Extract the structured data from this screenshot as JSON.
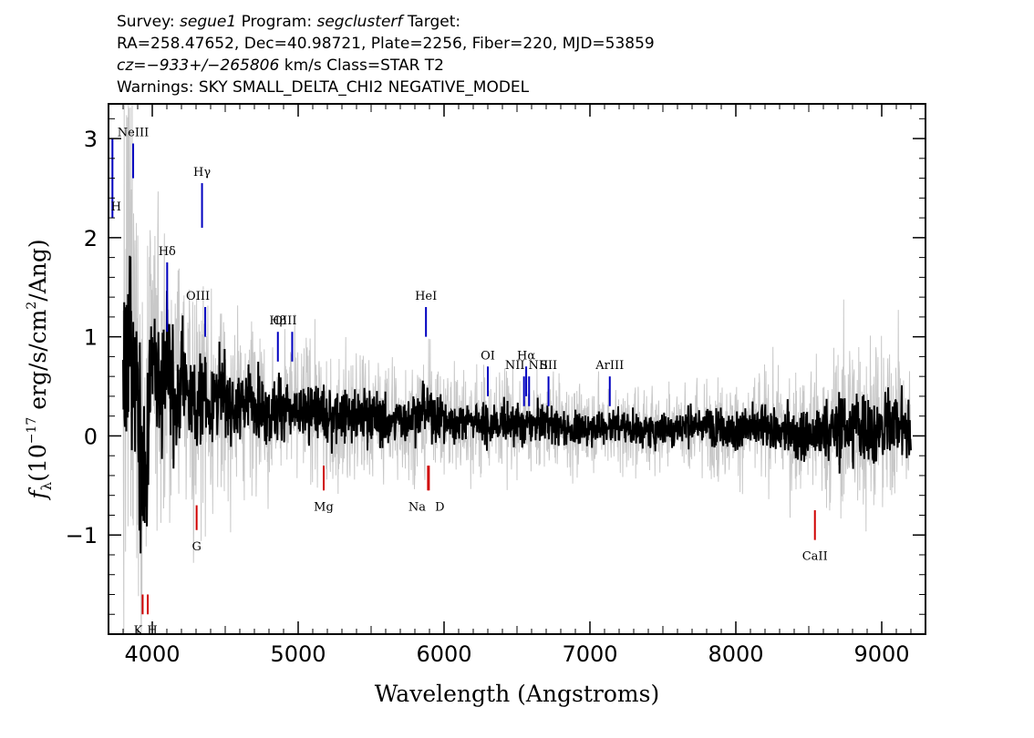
{
  "header": {
    "survey_label": "Survey:",
    "survey": "segue1",
    "program_label": "Program:",
    "program": "segclusterf",
    "target_label": "Target:",
    "line2": "RA=258.47652, Dec=40.98721, Plate=2256, Fiber=220, MJD=53859",
    "cz": "cz=−933+/−265806",
    "cz_unit_class": "km/s Class=STAR T2",
    "warnings": "Warnings: SKY SMALL_DELTA_CHI2 NEGATIVE_MODEL"
  },
  "chart_data": {
    "type": "line",
    "xlabel": "Wavelength (Angstroms)",
    "ylabel_prefix": "f",
    "ylabel_sub": "λ",
    "ylabel_units_a": "(10",
    "ylabel_exp1": "−17",
    "ylabel_units_b": " erg/s/cm",
    "ylabel_exp2": "2",
    "ylabel_units_c": "/Ang)",
    "xlim": [
      3700,
      9300
    ],
    "ylim": [
      -2.0,
      3.35
    ],
    "xticks": [
      4000,
      5000,
      6000,
      7000,
      8000,
      9000
    ],
    "xtick_labels": [
      "4000",
      "5000",
      "6000",
      "7000",
      "8000",
      "9000"
    ],
    "yticks": [
      -1,
      0,
      1,
      2,
      3
    ],
    "ytick_labels": [
      "−1",
      "0",
      "1",
      "2",
      "3"
    ],
    "series": [
      {
        "role": "flux",
        "color": "#000000",
        "x": [
          3800,
          3850,
          3900,
          3950,
          4000,
          4050,
          4100,
          4150,
          4200,
          4250,
          4300,
          4350,
          4400,
          4450,
          4500,
          4600,
          4700,
          4800,
          4900,
          5000,
          5100,
          5200,
          5300,
          5400,
          5500,
          5600,
          5700,
          5800,
          5900,
          6000,
          6100,
          6200,
          6300,
          6400,
          6500,
          6600,
          6700,
          6800,
          6900,
          7000,
          7200,
          7400,
          7600,
          7800,
          8000,
          8200,
          8400,
          8600,
          8800,
          9000,
          9100,
          9200
        ],
        "y": [
          0.3,
          1.3,
          0.5,
          -0.6,
          0.9,
          0.4,
          0.8,
          0.3,
          0.6,
          0.5,
          0.2,
          0.5,
          0.3,
          0.4,
          0.35,
          0.3,
          0.4,
          0.2,
          0.3,
          0.2,
          0.3,
          0.15,
          0.2,
          0.2,
          0.2,
          0.15,
          0.15,
          0.2,
          0.25,
          0.15,
          0.15,
          0.15,
          0.1,
          0.15,
          0.1,
          0.1,
          0.15,
          0.1,
          0.05,
          0.1,
          0.1,
          0.05,
          0.1,
          0.1,
          0.05,
          0.1,
          0.0,
          0.05,
          0.1,
          0.05,
          0.2,
          0.0
        ]
      },
      {
        "role": "error",
        "color": "#c8c8c8",
        "x": [
          3800,
          3900,
          4000,
          4200,
          4400,
          4600,
          5000,
          5500,
          6000,
          6500,
          7000,
          7500,
          8000,
          8500,
          8800,
          9000,
          9200
        ],
        "y": [
          2.0,
          1.6,
          1.1,
          0.9,
          0.75,
          0.6,
          0.5,
          0.45,
          0.4,
          0.35,
          0.3,
          0.3,
          0.35,
          0.45,
          0.7,
          0.6,
          0.55
        ]
      }
    ],
    "emission_lines": [
      {
        "label": "H",
        "x": 3727
      },
      {
        "label": "NeIII",
        "x": 3869
      },
      {
        "label": "Hγ",
        "x": 4341
      },
      {
        "label": "Hδ",
        "x": 4102
      },
      {
        "label": "OIII",
        "x": 4363
      },
      {
        "label": "Hβ",
        "x": 4861
      },
      {
        "label": "OIII",
        "x": 4959
      },
      {
        "label": "HeI",
        "x": 5876
      },
      {
        "label": "OI",
        "x": 6300
      },
      {
        "label": "NII",
        "x": 6548
      },
      {
        "label": "Hα",
        "x": 6563
      },
      {
        "label": "NII",
        "x": 6583
      },
      {
        "label": "SII",
        "x": 6716
      },
      {
        "label": "ArIII",
        "x": 7136
      }
    ],
    "absorption_lines": [
      {
        "label": "K",
        "x": 3934
      },
      {
        "label": "H",
        "x": 3969
      },
      {
        "label": "G",
        "x": 4304
      },
      {
        "label": "Mg",
        "x": 5175
      },
      {
        "label": "Na",
        "x": 5890
      },
      {
        "label": "D",
        "x": 5896
      },
      {
        "label": "CaII",
        "x": 8542
      }
    ],
    "colors": {
      "emission": "#0000c0",
      "absorption": "#d00000",
      "flux": "#000000",
      "error": "#c8c8c8"
    }
  }
}
